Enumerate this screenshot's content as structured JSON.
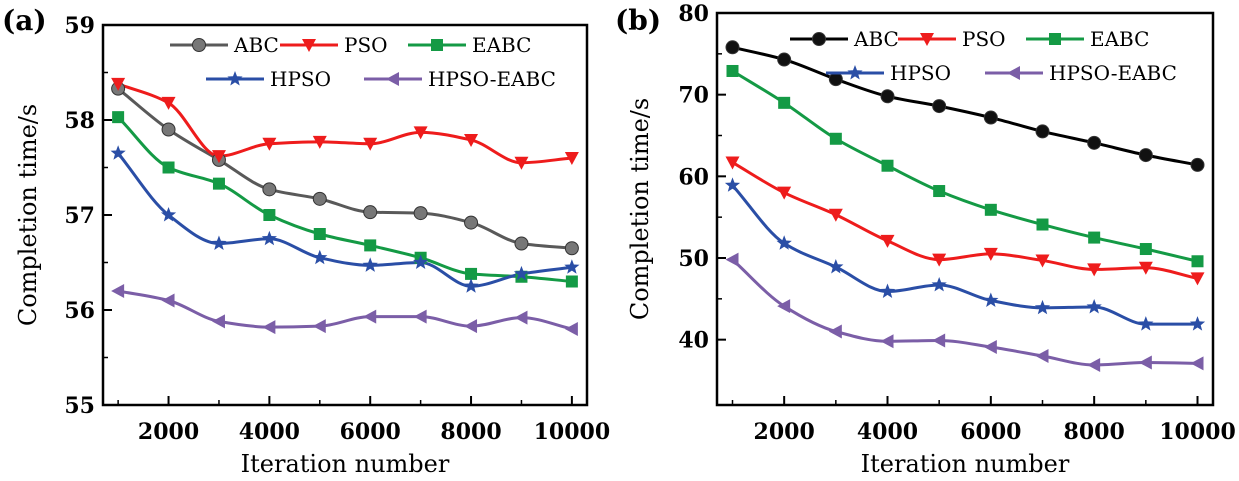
{
  "chart_data": [
    {
      "panel": "(a)",
      "type": "line",
      "xlabel": "Iteration number",
      "ylabel": "Completion time/s",
      "xlim": [
        700,
        10300
      ],
      "ylim": [
        55,
        59
      ],
      "xticks": [
        2000,
        4000,
        6000,
        8000,
        10000
      ],
      "yticks": [
        55,
        56,
        57,
        58,
        59
      ],
      "x": [
        1000,
        2000,
        3000,
        4000,
        5000,
        6000,
        7000,
        8000,
        9000,
        10000
      ],
      "legend_position": "top-right",
      "series": [
        {
          "name": "ABC",
          "color": "#595959",
          "marker": "circle",
          "values": [
            58.33,
            57.9,
            57.58,
            57.27,
            57.17,
            57.03,
            57.02,
            56.92,
            56.7,
            56.65
          ]
        },
        {
          "name": "PSO",
          "color": "#ee1c1c",
          "marker": "triangle-down",
          "values": [
            58.38,
            58.18,
            57.62,
            57.75,
            57.77,
            57.75,
            57.87,
            57.79,
            57.55,
            57.6
          ]
        },
        {
          "name": "EABC",
          "color": "#149a45",
          "marker": "square",
          "values": [
            58.03,
            57.5,
            57.33,
            57.0,
            56.8,
            56.68,
            56.55,
            56.38,
            56.35,
            56.3
          ]
        },
        {
          "name": "HPSO",
          "color": "#2a4ea6",
          "marker": "star",
          "values": [
            57.65,
            57.0,
            56.7,
            56.75,
            56.55,
            56.47,
            56.5,
            56.25,
            56.38,
            56.45
          ]
        },
        {
          "name": "HPSO-EABC",
          "color": "#7b5ea7",
          "marker": "triangle-left",
          "values": [
            56.2,
            56.1,
            55.88,
            55.82,
            55.83,
            55.93,
            55.93,
            55.83,
            55.92,
            55.8
          ]
        }
      ]
    },
    {
      "panel": "(b)",
      "type": "line",
      "xlabel": "Iteration number",
      "ylabel": "Completion time/s",
      "xlim": [
        700,
        10300
      ],
      "ylim": [
        32,
        80
      ],
      "xticks": [
        2000,
        4000,
        6000,
        8000,
        10000
      ],
      "yticks": [
        40,
        50,
        60,
        70,
        80
      ],
      "x": [
        1000,
        2000,
        3000,
        4000,
        5000,
        6000,
        7000,
        8000,
        9000,
        10000
      ],
      "legend_position": "top-right",
      "series": [
        {
          "name": "ABC",
          "color": "#000000",
          "marker": "circle",
          "values": [
            75.8,
            74.3,
            71.9,
            69.8,
            68.6,
            67.2,
            65.5,
            64.1,
            62.6,
            61.4
          ]
        },
        {
          "name": "PSO",
          "color": "#ee1c1c",
          "marker": "triangle-down",
          "values": [
            61.7,
            58.0,
            55.3,
            52.1,
            49.8,
            50.5,
            49.7,
            48.6,
            48.8,
            47.5
          ]
        },
        {
          "name": "EABC",
          "color": "#149a45",
          "marker": "square",
          "values": [
            72.9,
            69.0,
            64.6,
            61.3,
            58.2,
            55.9,
            54.1,
            52.5,
            51.1,
            49.6
          ]
        },
        {
          "name": "HPSO",
          "color": "#2a4ea6",
          "marker": "star",
          "values": [
            58.9,
            51.8,
            48.9,
            45.9,
            46.7,
            44.8,
            43.9,
            44.0,
            41.9,
            41.9
          ]
        },
        {
          "name": "HPSO-EABC",
          "color": "#7b5ea7",
          "marker": "triangle-left",
          "values": [
            49.8,
            44.1,
            41.0,
            39.8,
            39.9,
            39.1,
            38.0,
            36.9,
            37.2,
            37.1
          ]
        }
      ]
    }
  ]
}
